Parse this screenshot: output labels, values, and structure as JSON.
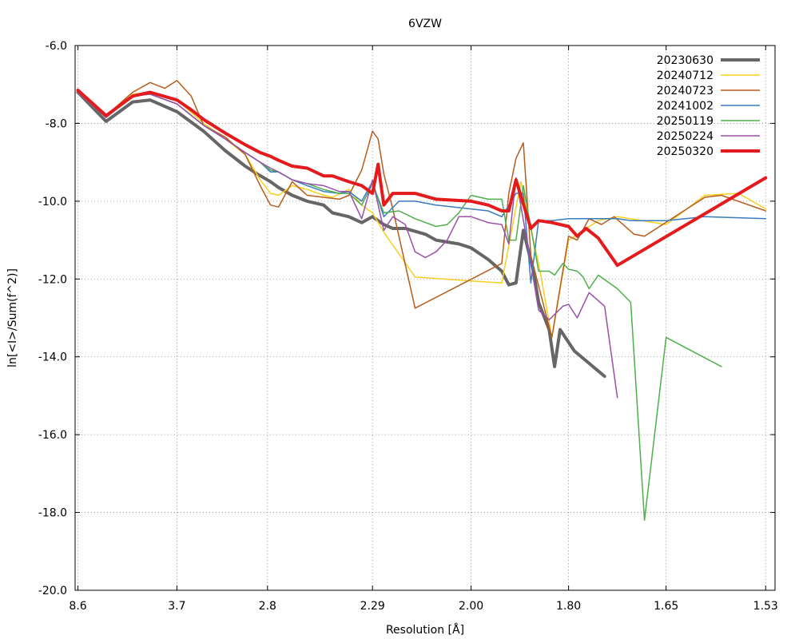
{
  "chart_data": {
    "type": "line",
    "title": "6VZW",
    "xlabel": "Resolution [Å]",
    "ylabel": "ln[<I>/Sum(f^2)]",
    "x_scale": "reciprocal-squared",
    "xlim": [
      9.2,
      1.52
    ],
    "ylim": [
      -20.0,
      -6.0
    ],
    "grid": true,
    "legend_position": "top-right",
    "x_ticks": [
      {
        "label": "8.6",
        "value": 8.6
      },
      {
        "label": "3.7",
        "value": 3.7
      },
      {
        "label": "2.8",
        "value": 2.8
      },
      {
        "label": "2.29",
        "value": 2.29
      },
      {
        "label": "2.00",
        "value": 2.0
      },
      {
        "label": "1.80",
        "value": 1.8
      },
      {
        "label": "1.65",
        "value": 1.65
      },
      {
        "label": "1.53",
        "value": 1.53
      }
    ],
    "y_ticks": [
      {
        "label": "-6.0",
        "value": -6.0
      },
      {
        "label": "-8.0",
        "value": -8.0
      },
      {
        "label": "-10.0",
        "value": -10.0
      },
      {
        "label": "-12.0",
        "value": -12.0
      },
      {
        "label": "-14.0",
        "value": -14.0
      },
      {
        "label": "-16.0",
        "value": -16.0
      },
      {
        "label": "-18.0",
        "value": -18.0
      },
      {
        "label": "-20.0",
        "value": -20.0
      }
    ],
    "series": [
      {
        "name": "20230630",
        "color": "#666666",
        "width": 4,
        "points": [
          [
            8.6,
            -7.2
          ],
          [
            5.73,
            -7.95
          ],
          [
            4.64,
            -7.45
          ],
          [
            4.19,
            -7.4
          ],
          [
            3.7,
            -7.7
          ],
          [
            3.35,
            -8.2
          ],
          [
            3.13,
            -8.7
          ],
          [
            2.96,
            -9.1
          ],
          [
            2.87,
            -9.3
          ],
          [
            2.78,
            -9.5
          ],
          [
            2.73,
            -9.65
          ],
          [
            2.65,
            -9.85
          ],
          [
            2.57,
            -10.0
          ],
          [
            2.49,
            -10.1
          ],
          [
            2.45,
            -10.3
          ],
          [
            2.38,
            -10.4
          ],
          [
            2.33,
            -10.55
          ],
          [
            2.29,
            -10.4
          ],
          [
            2.25,
            -10.6
          ],
          [
            2.22,
            -10.7
          ],
          [
            2.18,
            -10.7
          ],
          [
            2.12,
            -10.85
          ],
          [
            2.09,
            -11.0
          ],
          [
            2.06,
            -11.05
          ],
          [
            2.03,
            -11.1
          ],
          [
            2.0,
            -11.2
          ],
          [
            1.96,
            -11.5
          ],
          [
            1.93,
            -11.8
          ],
          [
            1.915,
            -12.15
          ],
          [
            1.9,
            -12.1
          ],
          [
            1.885,
            -10.75
          ],
          [
            1.865,
            -11.8
          ],
          [
            1.855,
            -12.6
          ],
          [
            1.835,
            -13.3
          ],
          [
            1.825,
            -14.25
          ],
          [
            1.815,
            -13.3
          ],
          [
            1.79,
            -13.85
          ],
          [
            1.74,
            -14.5
          ]
        ]
      },
      {
        "name": "20240712",
        "color": "#f5d020",
        "width": 1.5,
        "points": [
          [
            8.6,
            -7.2
          ],
          [
            5.73,
            -7.85
          ],
          [
            4.64,
            -7.25
          ],
          [
            4.19,
            -7.2
          ],
          [
            3.7,
            -7.4
          ],
          [
            3.35,
            -8.0
          ],
          [
            3.13,
            -8.4
          ],
          [
            2.96,
            -8.8
          ],
          [
            2.85,
            -9.45
          ],
          [
            2.78,
            -9.8
          ],
          [
            2.73,
            -9.85
          ],
          [
            2.65,
            -9.6
          ],
          [
            2.57,
            -9.7
          ],
          [
            2.49,
            -9.85
          ],
          [
            2.45,
            -9.9
          ],
          [
            2.38,
            -9.7
          ],
          [
            2.33,
            -10.1
          ],
          [
            2.29,
            -10.3
          ],
          [
            2.25,
            -10.8
          ],
          [
            2.15,
            -11.95
          ],
          [
            2.0,
            -12.05
          ],
          [
            1.93,
            -12.1
          ],
          [
            1.89,
            -9.5
          ],
          [
            1.855,
            -11.6
          ],
          [
            1.83,
            -13.5
          ],
          [
            1.8,
            -11.0
          ],
          [
            1.75,
            -10.5
          ],
          [
            1.72,
            -10.4
          ],
          [
            1.65,
            -10.6
          ],
          [
            1.6,
            -9.85
          ],
          [
            1.56,
            -9.8
          ],
          [
            1.53,
            -10.2
          ]
        ]
      },
      {
        "name": "20240723",
        "color": "#b85c1a",
        "width": 1.5,
        "points": [
          [
            8.6,
            -7.15
          ],
          [
            5.73,
            -7.8
          ],
          [
            4.64,
            -7.2
          ],
          [
            4.19,
            -6.95
          ],
          [
            3.9,
            -7.1
          ],
          [
            3.7,
            -6.9
          ],
          [
            3.5,
            -7.3
          ],
          [
            3.35,
            -8.05
          ],
          [
            3.13,
            -8.35
          ],
          [
            2.96,
            -8.8
          ],
          [
            2.85,
            -9.6
          ],
          [
            2.78,
            -10.1
          ],
          [
            2.73,
            -10.15
          ],
          [
            2.65,
            -9.5
          ],
          [
            2.57,
            -9.85
          ],
          [
            2.49,
            -9.9
          ],
          [
            2.42,
            -9.95
          ],
          [
            2.38,
            -9.85
          ],
          [
            2.33,
            -9.2
          ],
          [
            2.29,
            -8.2
          ],
          [
            2.27,
            -8.4
          ],
          [
            2.25,
            -9.3
          ],
          [
            2.22,
            -10.2
          ],
          [
            2.15,
            -12.75
          ],
          [
            1.93,
            -11.6
          ],
          [
            1.915,
            -9.8
          ],
          [
            1.9,
            -8.9
          ],
          [
            1.885,
            -8.5
          ],
          [
            1.87,
            -11.4
          ],
          [
            1.83,
            -13.5
          ],
          [
            1.8,
            -10.9
          ],
          [
            1.785,
            -11.0
          ],
          [
            1.765,
            -10.45
          ],
          [
            1.745,
            -10.6
          ],
          [
            1.725,
            -10.4
          ],
          [
            1.695,
            -10.85
          ],
          [
            1.68,
            -10.9
          ],
          [
            1.6,
            -9.9
          ],
          [
            1.58,
            -9.85
          ],
          [
            1.53,
            -10.25
          ]
        ]
      },
      {
        "name": "20241002",
        "color": "#3a7bc0",
        "width": 1.5,
        "points": [
          [
            8.6,
            -7.2
          ],
          [
            5.73,
            -7.85
          ],
          [
            4.64,
            -7.3
          ],
          [
            4.19,
            -7.25
          ],
          [
            3.7,
            -7.5
          ],
          [
            3.35,
            -8.05
          ],
          [
            3.13,
            -8.4
          ],
          [
            2.96,
            -8.75
          ],
          [
            2.85,
            -9.0
          ],
          [
            2.78,
            -9.25
          ],
          [
            2.73,
            -9.25
          ],
          [
            2.65,
            -9.45
          ],
          [
            2.57,
            -9.6
          ],
          [
            2.49,
            -9.75
          ],
          [
            2.42,
            -9.8
          ],
          [
            2.38,
            -9.75
          ],
          [
            2.33,
            -10.0
          ],
          [
            2.29,
            -9.5
          ],
          [
            2.25,
            -10.4
          ],
          [
            2.2,
            -10.0
          ],
          [
            2.15,
            -10.0
          ],
          [
            2.09,
            -10.1
          ],
          [
            2.0,
            -10.2
          ],
          [
            1.96,
            -10.25
          ],
          [
            1.93,
            -10.4
          ],
          [
            1.9,
            -9.8
          ],
          [
            1.885,
            -9.8
          ],
          [
            1.87,
            -12.1
          ],
          [
            1.855,
            -10.5
          ],
          [
            1.83,
            -10.5
          ],
          [
            1.8,
            -10.45
          ],
          [
            1.75,
            -10.45
          ],
          [
            1.72,
            -10.45
          ],
          [
            1.7,
            -10.5
          ],
          [
            1.68,
            -10.5
          ],
          [
            1.65,
            -10.5
          ],
          [
            1.6,
            -10.4
          ],
          [
            1.53,
            -10.45
          ]
        ]
      },
      {
        "name": "20250119",
        "color": "#4db04a",
        "width": 1.5,
        "points": [
          [
            8.6,
            -7.2
          ],
          [
            5.73,
            -7.85
          ],
          [
            4.64,
            -7.3
          ],
          [
            4.19,
            -7.25
          ],
          [
            3.7,
            -7.5
          ],
          [
            3.35,
            -8.05
          ],
          [
            3.13,
            -8.4
          ],
          [
            2.96,
            -8.75
          ],
          [
            2.85,
            -9.0
          ],
          [
            2.78,
            -9.2
          ],
          [
            2.73,
            -9.25
          ],
          [
            2.65,
            -9.45
          ],
          [
            2.57,
            -9.55
          ],
          [
            2.49,
            -9.7
          ],
          [
            2.42,
            -9.8
          ],
          [
            2.38,
            -9.8
          ],
          [
            2.33,
            -10.1
          ],
          [
            2.29,
            -9.55
          ],
          [
            2.25,
            -10.3
          ],
          [
            2.2,
            -10.25
          ],
          [
            2.15,
            -10.45
          ],
          [
            2.09,
            -10.65
          ],
          [
            2.06,
            -10.6
          ],
          [
            2.03,
            -10.3
          ],
          [
            2.0,
            -9.85
          ],
          [
            1.96,
            -9.95
          ],
          [
            1.93,
            -9.95
          ],
          [
            1.915,
            -11.0
          ],
          [
            1.9,
            -11.0
          ],
          [
            1.885,
            -9.6
          ],
          [
            1.855,
            -11.8
          ],
          [
            1.835,
            -11.8
          ],
          [
            1.825,
            -11.9
          ],
          [
            1.81,
            -11.6
          ],
          [
            1.8,
            -11.75
          ],
          [
            1.785,
            -11.8
          ],
          [
            1.775,
            -11.95
          ],
          [
            1.765,
            -12.25
          ],
          [
            1.75,
            -11.9
          ],
          [
            1.72,
            -12.25
          ],
          [
            1.7,
            -12.6
          ],
          [
            1.68,
            -18.2
          ],
          [
            1.65,
            -13.5
          ],
          [
            1.58,
            -14.25
          ]
        ]
      },
      {
        "name": "20250224",
        "color": "#9a4fa8",
        "width": 1.5,
        "points": [
          [
            8.6,
            -7.2
          ],
          [
            5.73,
            -7.85
          ],
          [
            4.64,
            -7.3
          ],
          [
            4.19,
            -7.25
          ],
          [
            3.7,
            -7.5
          ],
          [
            3.35,
            -8.05
          ],
          [
            3.13,
            -8.4
          ],
          [
            2.96,
            -8.75
          ],
          [
            2.85,
            -9.0
          ],
          [
            2.78,
            -9.15
          ],
          [
            2.73,
            -9.25
          ],
          [
            2.65,
            -9.45
          ],
          [
            2.57,
            -9.55
          ],
          [
            2.49,
            -9.6
          ],
          [
            2.42,
            -9.75
          ],
          [
            2.38,
            -9.75
          ],
          [
            2.33,
            -10.45
          ],
          [
            2.29,
            -9.45
          ],
          [
            2.25,
            -10.75
          ],
          [
            2.22,
            -10.4
          ],
          [
            2.18,
            -10.6
          ],
          [
            2.15,
            -11.3
          ],
          [
            2.12,
            -11.45
          ],
          [
            2.09,
            -11.3
          ],
          [
            2.06,
            -11.0
          ],
          [
            2.03,
            -10.4
          ],
          [
            2.0,
            -10.4
          ],
          [
            1.96,
            -10.55
          ],
          [
            1.93,
            -10.6
          ],
          [
            1.915,
            -11.1
          ],
          [
            1.9,
            -9.4
          ],
          [
            1.87,
            -11.6
          ],
          [
            1.855,
            -12.8
          ],
          [
            1.835,
            -13.05
          ],
          [
            1.81,
            -12.7
          ],
          [
            1.8,
            -12.65
          ],
          [
            1.785,
            -13.0
          ],
          [
            1.765,
            -12.35
          ],
          [
            1.74,
            -12.7
          ],
          [
            1.72,
            -15.05
          ]
        ]
      },
      {
        "name": "20250320",
        "color": "#e41a1c",
        "width": 4,
        "points": [
          [
            8.6,
            -7.15
          ],
          [
            5.73,
            -7.8
          ],
          [
            4.64,
            -7.3
          ],
          [
            4.19,
            -7.2
          ],
          [
            3.7,
            -7.4
          ],
          [
            3.5,
            -7.65
          ],
          [
            3.35,
            -7.9
          ],
          [
            3.13,
            -8.25
          ],
          [
            2.96,
            -8.55
          ],
          [
            2.85,
            -8.75
          ],
          [
            2.78,
            -8.85
          ],
          [
            2.73,
            -8.95
          ],
          [
            2.65,
            -9.1
          ],
          [
            2.57,
            -9.15
          ],
          [
            2.49,
            -9.35
          ],
          [
            2.45,
            -9.35
          ],
          [
            2.38,
            -9.5
          ],
          [
            2.33,
            -9.6
          ],
          [
            2.29,
            -9.8
          ],
          [
            2.27,
            -9.05
          ],
          [
            2.25,
            -10.1
          ],
          [
            2.22,
            -9.8
          ],
          [
            2.15,
            -9.8
          ],
          [
            2.09,
            -9.95
          ],
          [
            2.0,
            -10.0
          ],
          [
            1.96,
            -10.1
          ],
          [
            1.93,
            -10.25
          ],
          [
            1.915,
            -10.25
          ],
          [
            1.9,
            -9.45
          ],
          [
            1.87,
            -10.7
          ],
          [
            1.855,
            -10.5
          ],
          [
            1.83,
            -10.55
          ],
          [
            1.8,
            -10.65
          ],
          [
            1.785,
            -10.9
          ],
          [
            1.77,
            -10.7
          ],
          [
            1.75,
            -10.95
          ],
          [
            1.72,
            -11.65
          ],
          [
            1.53,
            -9.4
          ]
        ]
      }
    ]
  }
}
